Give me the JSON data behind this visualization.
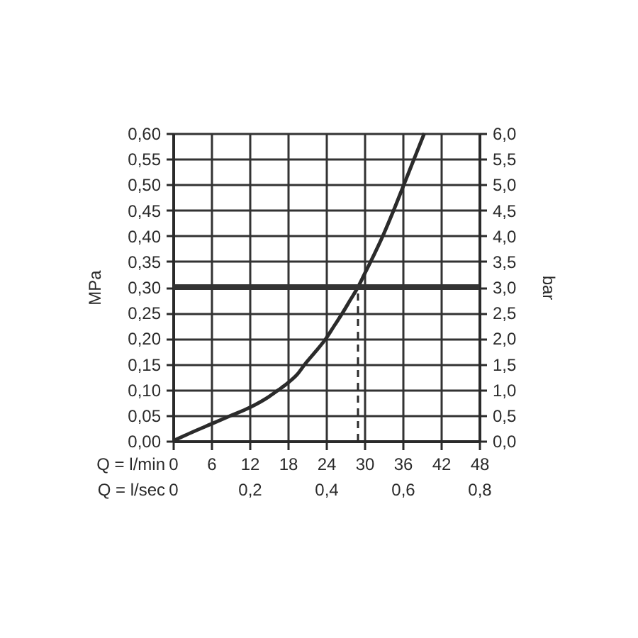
{
  "chart_data": {
    "type": "line",
    "xlabel": "Q = l/min",
    "x2label": "Q = l/sec",
    "ylabel": "MPa",
    "y2label": "bar",
    "xlim": [
      0,
      48
    ],
    "xticks": [
      0,
      6,
      12,
      18,
      24,
      30,
      36,
      42,
      48
    ],
    "x2lim": [
      0,
      0.8
    ],
    "x2ticks": [
      0,
      {
        "value": 0.2,
        "label": "0,2"
      },
      {
        "value": 0.4,
        "label": "0,4"
      },
      {
        "value": 0.6,
        "label": "0,6"
      },
      {
        "value": 0.8,
        "label": "0,8"
      }
    ],
    "ylim": [
      0,
      0.6
    ],
    "yticks": [
      {
        "value": 0,
        "label": "0,00"
      },
      {
        "value": 0.05,
        "label": "0,05"
      },
      {
        "value": 0.1,
        "label": "0,10"
      },
      {
        "value": 0.15,
        "label": "0,15"
      },
      {
        "value": 0.2,
        "label": "0,20"
      },
      {
        "value": 0.25,
        "label": "0,25"
      },
      {
        "value": 0.3,
        "label": "0,30"
      },
      {
        "value": 0.35,
        "label": "0,35"
      },
      {
        "value": 0.4,
        "label": "0,40"
      },
      {
        "value": 0.45,
        "label": "0,45"
      },
      {
        "value": 0.5,
        "label": "0,50"
      },
      {
        "value": 0.55,
        "label": "0,55"
      },
      {
        "value": 0.6,
        "label": "0,60"
      }
    ],
    "y2lim": [
      0,
      6
    ],
    "y2ticks": [
      {
        "value": 0,
        "label": "0,0"
      },
      {
        "value": 0.5,
        "label": "0,5"
      },
      {
        "value": 1,
        "label": "1,0"
      },
      {
        "value": 1.5,
        "label": "1,5"
      },
      {
        "value": 2,
        "label": "2,0"
      },
      {
        "value": 2.5,
        "label": "2,5"
      },
      {
        "value": 3,
        "label": "3,0"
      },
      {
        "value": 3.5,
        "label": "3,5"
      },
      {
        "value": 4,
        "label": "4,0"
      },
      {
        "value": 4.5,
        "label": "4,5"
      },
      {
        "value": 5,
        "label": "5,0"
      },
      {
        "value": 5.5,
        "label": "5,5"
      },
      {
        "value": 6,
        "label": "6,0"
      }
    ],
    "grid": true,
    "series": [
      {
        "color": "#2b2b2b",
        "x": [
          0,
          3,
          6,
          9,
          12,
          15,
          16.6,
          18,
          19.5,
          20.7,
          22.4,
          24,
          25.3,
          26.6,
          27.8,
          29,
          30,
          31,
          32.9,
          34.6,
          36.2,
          37.8,
          39.4
        ],
        "values": [
          0,
          0.017,
          0.033,
          0.049,
          0.065,
          0.086,
          0.1,
          0.113,
          0.13,
          0.15,
          0.175,
          0.2,
          0.225,
          0.25,
          0.275,
          0.3,
          0.325,
          0.35,
          0.4,
          0.45,
          0.5,
          0.55,
          0.6
        ]
      },
      {
        "color": "#2b2b2b",
        "line_style": "dashed",
        "x": [
          29,
          29
        ],
        "values": [
          0,
          0.3
        ]
      }
    ],
    "ref_lines": [
      {
        "axis": "y",
        "value": 0.3,
        "color": "#333333"
      }
    ]
  }
}
